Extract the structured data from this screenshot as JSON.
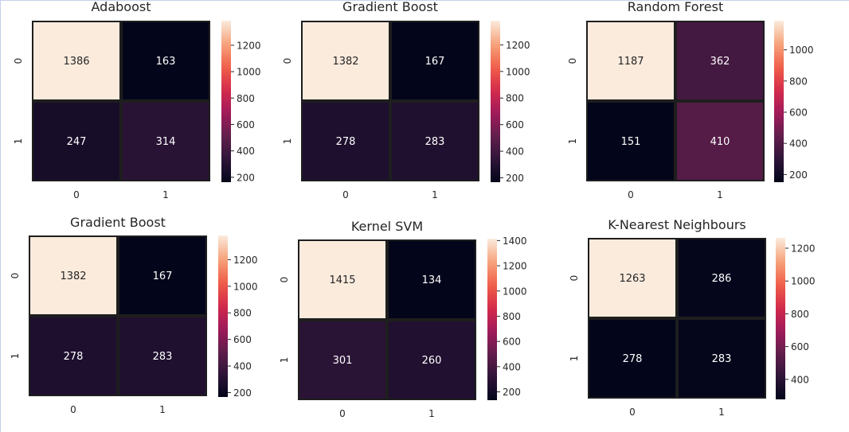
{
  "colormap_stops": [
    "#03051a",
    "#2e1539",
    "#621e4c",
    "#a11a5b",
    "#d52b4b",
    "#f1604a",
    "#f6a47c",
    "#faebdd"
  ],
  "chart_data": [
    {
      "type": "heatmap",
      "title": "Adaboost",
      "x_ticks": [
        "0",
        "1"
      ],
      "y_ticks": [
        "0",
        "1"
      ],
      "values": [
        [
          1386,
          163
        ],
        [
          247,
          314
        ]
      ],
      "color_range": [
        163,
        1386
      ],
      "colorbar_ticks": [
        200,
        400,
        600,
        800,
        1000,
        1200
      ]
    },
    {
      "type": "heatmap",
      "title": "Gradient Boost",
      "x_ticks": [
        "0",
        "1"
      ],
      "y_ticks": [
        "0",
        "1"
      ],
      "values": [
        [
          1382,
          167
        ],
        [
          278,
          283
        ]
      ],
      "color_range": [
        167,
        1382
      ],
      "colorbar_ticks": [
        200,
        400,
        600,
        800,
        1000,
        1200
      ]
    },
    {
      "type": "heatmap",
      "title": "Random Forest",
      "x_ticks": [
        "0",
        "1"
      ],
      "y_ticks": [
        "0",
        "1"
      ],
      "values": [
        [
          1187,
          362
        ],
        [
          151,
          410
        ]
      ],
      "color_range": [
        151,
        1187
      ],
      "colorbar_ticks": [
        200,
        400,
        600,
        800,
        1000
      ]
    },
    {
      "type": "heatmap",
      "title": "Gradient Boost",
      "x_ticks": [
        "0",
        "1"
      ],
      "y_ticks": [
        "0",
        "1"
      ],
      "values": [
        [
          1382,
          167
        ],
        [
          278,
          283
        ]
      ],
      "color_range": [
        167,
        1382
      ],
      "colorbar_ticks": [
        200,
        400,
        600,
        800,
        1000,
        1200
      ]
    },
    {
      "type": "heatmap",
      "title": "Kernel SVM",
      "x_ticks": [
        "0",
        "1"
      ],
      "y_ticks": [
        "0",
        "1"
      ],
      "values": [
        [
          1415,
          134
        ],
        [
          301,
          260
        ]
      ],
      "color_range": [
        134,
        1415
      ],
      "colorbar_ticks": [
        200,
        400,
        600,
        800,
        1000,
        1200,
        1400
      ]
    },
    {
      "type": "heatmap",
      "title": "K-Nearest Neighbours",
      "x_ticks": [
        "0",
        "1"
      ],
      "y_ticks": [
        "0",
        "1"
      ],
      "values": [
        [
          1263,
          286
        ],
        [
          278,
          283
        ]
      ],
      "color_range": [
        278,
        1263
      ],
      "colorbar_ticks": [
        400,
        600,
        800,
        1000,
        1200
      ]
    }
  ]
}
